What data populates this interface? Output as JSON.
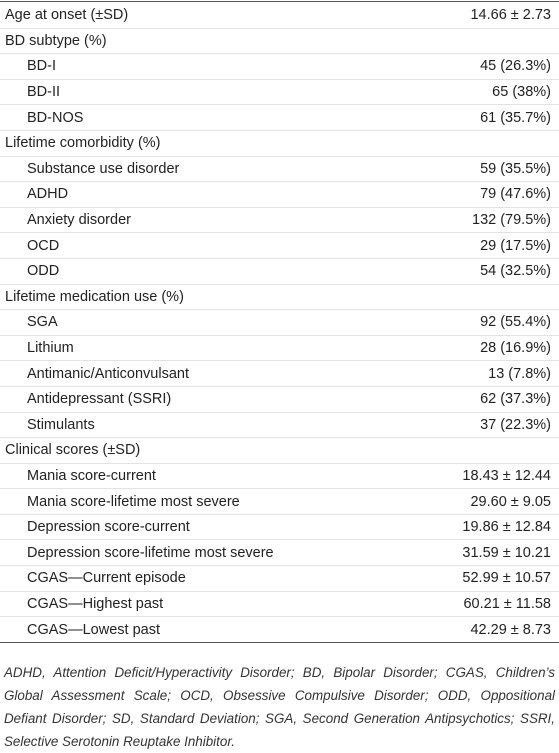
{
  "table": {
    "rows": [
      {
        "label": "Age at onset (±SD)",
        "value": "14.66 ± 2.73"
      },
      {
        "label": "BD subtype (%)",
        "items": [
          {
            "label": "BD-I",
            "value": "45 (26.3%)"
          },
          {
            "label": "BD-II",
            "value": "65 (38%)"
          },
          {
            "label": "BD-NOS",
            "value": "61 (35.7%)"
          }
        ]
      },
      {
        "label": "Lifetime comorbidity (%)",
        "items": [
          {
            "label": "Substance use disorder",
            "value": "59 (35.5%)"
          },
          {
            "label": "ADHD",
            "value": "79 (47.6%)"
          },
          {
            "label": "Anxiety disorder",
            "value": "132 (79.5%)"
          },
          {
            "label": "OCD",
            "value": "29 (17.5%)"
          },
          {
            "label": "ODD",
            "value": "54 (32.5%)"
          }
        ]
      },
      {
        "label": "Lifetime medication use (%)",
        "items": [
          {
            "label": "SGA",
            "value": "92 (55.4%)"
          },
          {
            "label": "Lithium",
            "value": "28 (16.9%)"
          },
          {
            "label": "Antimanic/Anticonvulsant",
            "value": "13 (7.8%)"
          },
          {
            "label": "Antidepressant (SSRI)",
            "value": "62 (37.3%)"
          },
          {
            "label": "Stimulants",
            "value": "37 (22.3%)"
          }
        ]
      },
      {
        "label": "Clinical scores (±SD)",
        "items": [
          {
            "label": "Mania score-current",
            "value": "18.43 ± 12.44"
          },
          {
            "label": "Mania score-lifetime most severe",
            "value": "29.60 ± 9.05"
          },
          {
            "label": "Depression score-current",
            "value": "19.86 ± 12.84"
          },
          {
            "label": "Depression score-lifetime most severe",
            "value": "31.59 ± 10.21"
          },
          {
            "label": "CGAS—Current episode",
            "value": "52.99 ± 10.57"
          },
          {
            "label": "CGAS—Highest past",
            "value": "60.21 ± 11.58"
          },
          {
            "label": "CGAS—Lowest past",
            "value": "42.29 ± 8.73"
          }
        ]
      }
    ]
  },
  "footnote": "ADHD, Attention Deficit/Hyperactivity Disorder; BD, Bipolar Disorder; CGAS, Children’s Global Assessment Scale; OCD, Obsessive Compulsive Disorder; ODD, Oppositional Defiant Disorder; SD, Standard Deviation; SGA, Second Generation Antipsychotics; SSRI, Selective Serotonin Reuptake Inhibitor."
}
